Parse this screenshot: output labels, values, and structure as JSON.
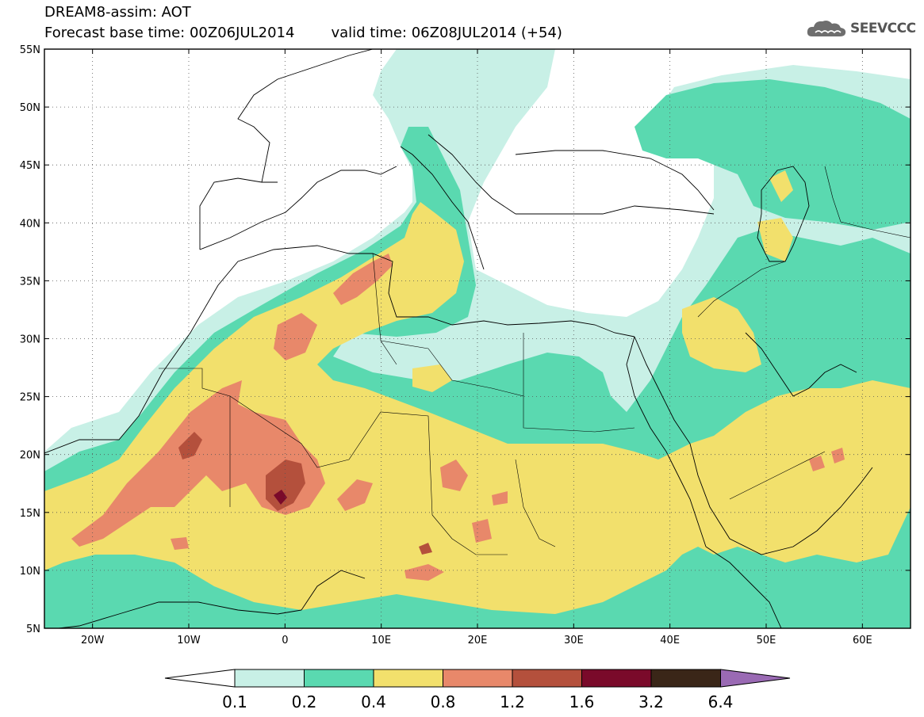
{
  "header": {
    "title": "DREAM8-assim: AOT",
    "forecast_line": "Forecast base time: 00Z06JUL2014",
    "valid_line": "valid time: 06Z08JUL2014 (+54)"
  },
  "logo": {
    "text": "SEEVCCC",
    "icon": "cloud-icon"
  },
  "map": {
    "lon_range": [
      -25,
      65
    ],
    "lat_range": [
      5,
      55
    ],
    "lat_ticks": [
      {
        "value": 55,
        "label": "55N"
      },
      {
        "value": 50,
        "label": "50N"
      },
      {
        "value": 45,
        "label": "45N"
      },
      {
        "value": 40,
        "label": "40N"
      },
      {
        "value": 35,
        "label": "35N"
      },
      {
        "value": 30,
        "label": "30N"
      },
      {
        "value": 25,
        "label": "25N"
      },
      {
        "value": 20,
        "label": "20N"
      },
      {
        "value": 15,
        "label": "15N"
      },
      {
        "value": 10,
        "label": "10N"
      },
      {
        "value": 5,
        "label": "5N"
      }
    ],
    "lon_ticks": [
      {
        "value": -20,
        "label": "20W"
      },
      {
        "value": -10,
        "label": "10W"
      },
      {
        "value": 0,
        "label": "0"
      },
      {
        "value": 10,
        "label": "10E"
      },
      {
        "value": 20,
        "label": "20E"
      },
      {
        "value": 30,
        "label": "30E"
      },
      {
        "value": 40,
        "label": "40E"
      },
      {
        "value": 50,
        "label": "50E"
      },
      {
        "value": 60,
        "label": "60E"
      }
    ],
    "grid": "dotted"
  },
  "colorbar": {
    "levels": [
      "0.1",
      "0.2",
      "0.4",
      "0.8",
      "1.2",
      "1.6",
      "3.2",
      "6.4"
    ],
    "colors": {
      "below": "#ffffff",
      "0.1-0.2": "#c8f0e6",
      "0.2-0.4": "#5ad9b0",
      "0.4-0.8": "#f2e06c",
      "0.8-1.2": "#e8886a",
      "1.2-1.6": "#b4503c",
      "1.6-3.2": "#7a0a2a",
      "3.2-6.4": "#3a2618",
      "above": "#9a6ab4"
    }
  }
}
